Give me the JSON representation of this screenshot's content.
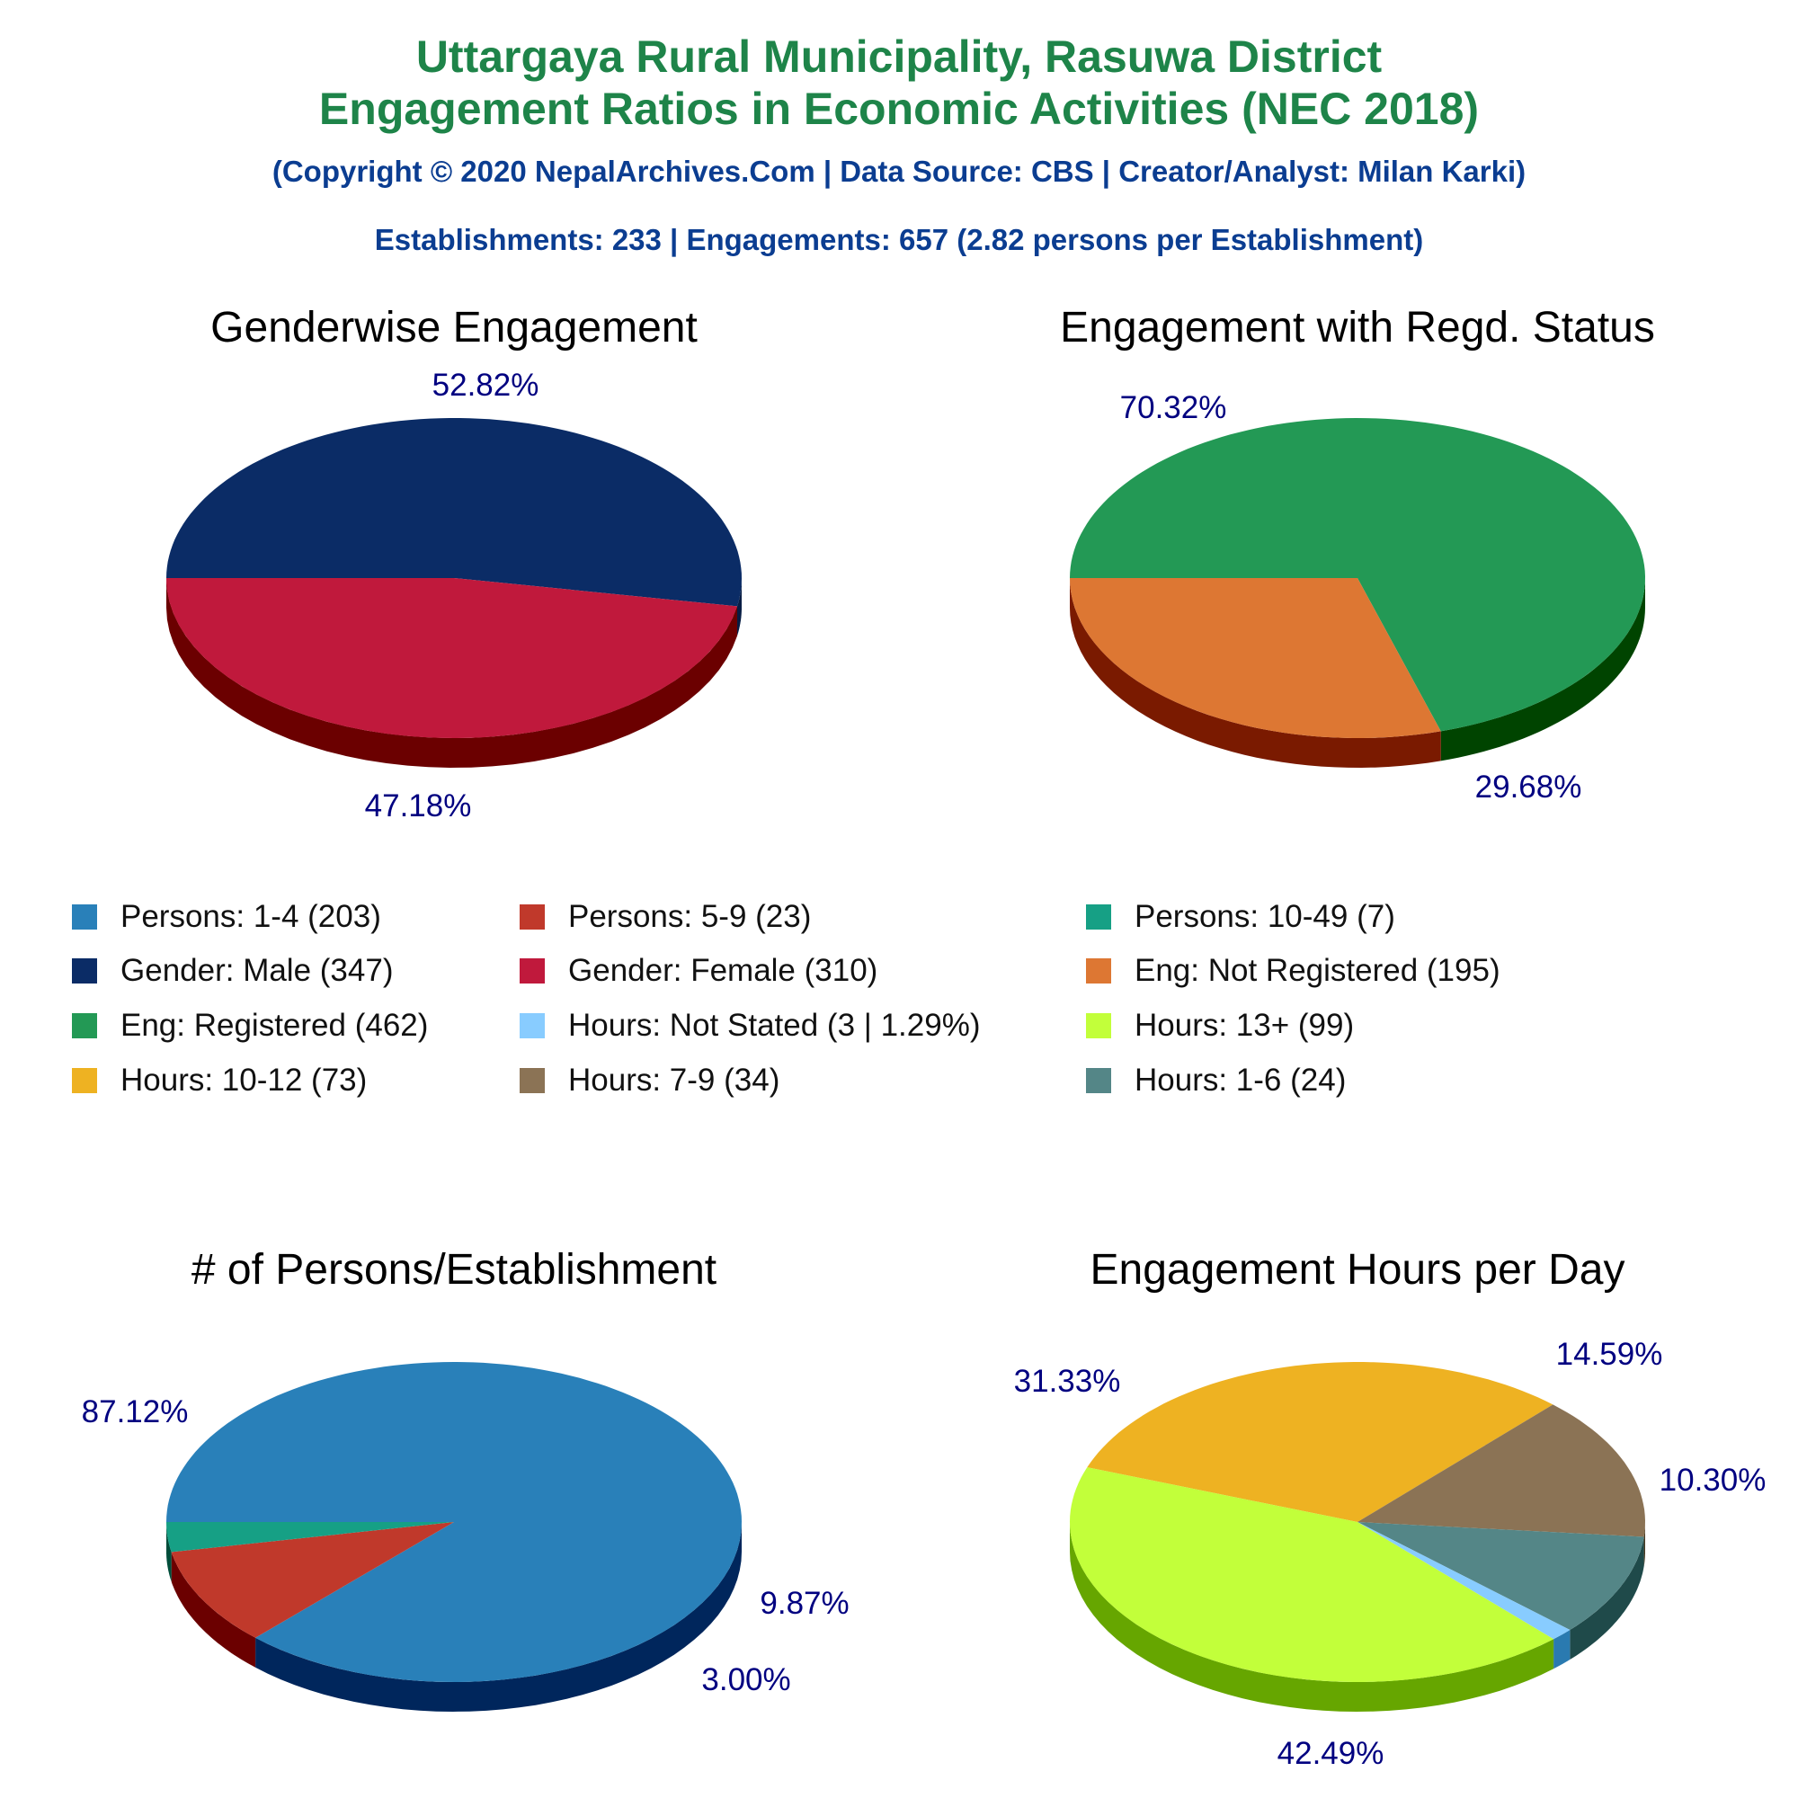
{
  "header": {
    "title_line1": "Uttargaya Rural Municipality, Rasuwa District",
    "title_line2": "Engagement Ratios in Economic Activities (NEC 2018)",
    "copyright": "(Copyright © 2020 NepalArchives.Com | Data Source: CBS | Creator/Analyst: Milan Karki)",
    "summary": "Establishments: 233 | Engagements: 657 (2.82 persons per Establishment)"
  },
  "legend": [
    {
      "label": "Persons: 1-4 (203)",
      "color": "#2980b9"
    },
    {
      "label": "Persons: 5-9 (23)",
      "color": "#c0392b"
    },
    {
      "label": "Persons: 10-49 (7)",
      "color": "#16a085"
    },
    {
      "label": "Gender: Male (347)",
      "color": "#0b2c66"
    },
    {
      "label": "Gender: Female (310)",
      "color": "#c0193c"
    },
    {
      "label": "Eng: Not Registered (195)",
      "color": "#dd7733"
    },
    {
      "label": "Eng: Registered (462)",
      "color": "#239955"
    },
    {
      "label": "Hours: Not Stated (3 | 1.29%)",
      "color": "#88ccff"
    },
    {
      "label": "Hours: 13+ (99)",
      "color": "#c2ff3a"
    },
    {
      "label": "Hours: 10-12 (73)",
      "color": "#eeb222"
    },
    {
      "label": "Hours: 7-9 (34)",
      "color": "#8b7355"
    },
    {
      "label": "Hours: 1-6 (24)",
      "color": "#548687"
    }
  ],
  "chart_data": [
    {
      "type": "pie",
      "title": "Genderwise Engagement",
      "categories": [
        "Gender: Male",
        "Gender: Female"
      ],
      "values": [
        52.82,
        47.18
      ],
      "value_labels": [
        "52.82%",
        "47.18%"
      ],
      "colors": [
        "#0b2c66",
        "#c0193c"
      ],
      "side_colors": [
        "#071d44",
        "#6b0000"
      ]
    },
    {
      "type": "pie",
      "title": "Engagement with Regd. Status",
      "categories": [
        "Eng: Registered",
        "Eng: Not Registered"
      ],
      "values": [
        70.32,
        29.68
      ],
      "value_labels": [
        "70.32%",
        "29.68%"
      ],
      "colors": [
        "#239955",
        "#dd7733"
      ],
      "side_colors": [
        "#004400",
        "#7a1a00"
      ]
    },
    {
      "type": "pie",
      "title": "# of Persons/Establishment",
      "categories": [
        "Persons: 1-4",
        "Persons: 5-9",
        "Persons: 10-49"
      ],
      "values": [
        87.12,
        9.87,
        3.0
      ],
      "value_labels": [
        "87.12%",
        "9.87%",
        "3.00%"
      ],
      "colors": [
        "#2980b9",
        "#c0392b",
        "#16a085"
      ],
      "side_colors": [
        "#00265c",
        "#6b0000",
        "#004d3a"
      ]
    },
    {
      "type": "pie",
      "title": "Engagement Hours per Day",
      "categories": [
        "Hours: 10-12",
        "Hours: 7-9",
        "Hours: 1-6",
        "Hours: Not Stated",
        "Hours: 13+"
      ],
      "values": [
        31.33,
        14.59,
        10.3,
        1.29,
        42.49
      ],
      "value_labels": [
        "31.33%",
        "14.59%",
        "10.30%",
        "",
        "42.49%"
      ],
      "colors": [
        "#eeb222",
        "#8b7355",
        "#548687",
        "#88ccff",
        "#c2ff3a"
      ],
      "side_colors": [
        "#8a6400",
        "#4a3a20",
        "#1f4a4a",
        "#2a7ab0",
        "#66a600"
      ]
    }
  ]
}
